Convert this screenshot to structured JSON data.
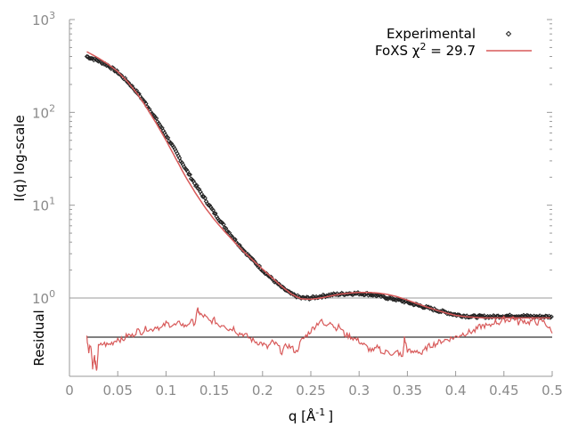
{
  "chart_data": [
    {
      "type": "scatter",
      "panel": "main",
      "ylabel": "I(q) log-scale",
      "xlim": [
        0,
        0.5
      ],
      "ylim_log10": [
        0,
        3
      ],
      "yscale": "log",
      "y_ticks": [
        {
          "base": "10",
          "exp": "0"
        },
        {
          "base": "10",
          "exp": "1"
        },
        {
          "base": "10",
          "exp": "2"
        },
        {
          "base": "10",
          "exp": "3"
        }
      ],
      "grid": false,
      "legend_position": "top-right",
      "series": [
        {
          "name": "Experimental",
          "style": "points",
          "color": "#222222",
          "x": [
            0.018,
            0.03,
            0.04,
            0.05,
            0.06,
            0.07,
            0.08,
            0.09,
            0.1,
            0.11,
            0.12,
            0.13,
            0.14,
            0.15,
            0.16,
            0.17,
            0.18,
            0.19,
            0.2,
            0.21,
            0.22,
            0.23,
            0.24,
            0.25,
            0.26,
            0.27,
            0.28,
            0.29,
            0.3,
            0.31,
            0.32,
            0.33,
            0.34,
            0.35,
            0.36,
            0.37,
            0.38,
            0.39,
            0.4,
            0.41,
            0.42,
            0.43,
            0.44,
            0.45,
            0.46,
            0.47,
            0.48,
            0.49,
            0.5
          ],
          "y": [
            400,
            360,
            320,
            270,
            215,
            165,
            120,
            84,
            57,
            38,
            25,
            17,
            11.8,
            8.3,
            6.0,
            4.4,
            3.3,
            2.55,
            2.0,
            1.6,
            1.3,
            1.1,
            1.0,
            1.0,
            1.04,
            1.08,
            1.1,
            1.12,
            1.12,
            1.1,
            1.06,
            1.0,
            0.96,
            0.9,
            0.84,
            0.79,
            0.74,
            0.7,
            0.66,
            0.64,
            0.63,
            0.63,
            0.63,
            0.64,
            0.64,
            0.64,
            0.63,
            0.63,
            0.63
          ]
        },
        {
          "name": "FoXS χ² = 29.7",
          "legend_text": "FoXS χ",
          "legend_sup": "2",
          "legend_suffix": " = 29.7",
          "style": "line",
          "color": "#d85a5a",
          "x": [
            0.018,
            0.03,
            0.04,
            0.05,
            0.06,
            0.07,
            0.08,
            0.09,
            0.1,
            0.11,
            0.12,
            0.13,
            0.14,
            0.15,
            0.16,
            0.17,
            0.18,
            0.19,
            0.2,
            0.21,
            0.22,
            0.23,
            0.24,
            0.25,
            0.26,
            0.27,
            0.28,
            0.29,
            0.3,
            0.31,
            0.32,
            0.33,
            0.34,
            0.35,
            0.36,
            0.37,
            0.38,
            0.39,
            0.4,
            0.41,
            0.42,
            0.43,
            0.44,
            0.45,
            0.46,
            0.47,
            0.48,
            0.49,
            0.5
          ],
          "y": [
            450,
            385,
            330,
            275,
            215,
            160,
            112,
            76,
            50,
            32,
            20.5,
            13.8,
            9.6,
            7.0,
            5.3,
            4.1,
            3.2,
            2.55,
            2.05,
            1.65,
            1.33,
            1.1,
            0.98,
            0.97,
            1.0,
            1.05,
            1.1,
            1.13,
            1.15,
            1.15,
            1.13,
            1.09,
            1.03,
            0.95,
            0.87,
            0.8,
            0.74,
            0.69,
            0.65,
            0.63,
            0.62,
            0.61,
            0.61,
            0.61,
            0.61,
            0.61,
            0.61,
            0.61,
            0.61
          ]
        }
      ]
    },
    {
      "type": "line",
      "panel": "residual",
      "ylabel": "Residual",
      "xlabel_base": "q [Å",
      "xlabel_sup": "-1",
      "xlabel_end": "]",
      "xlim": [
        0,
        0.5
      ],
      "ylim": [
        -6,
        6
      ],
      "x_ticks": [
        "0",
        "0.05",
        "0.1",
        "0.15",
        "0.2",
        "0.25",
        "0.3",
        "0.35",
        "0.4",
        "0.45",
        "0.5"
      ],
      "reference_line": 0,
      "series": [
        {
          "style": "line",
          "color": "#d85a5a",
          "x": [
            0.018,
            0.02,
            0.022,
            0.024,
            0.026,
            0.028,
            0.03,
            0.035,
            0.04,
            0.045,
            0.05,
            0.055,
            0.06,
            0.065,
            0.07,
            0.075,
            0.08,
            0.085,
            0.09,
            0.095,
            0.1,
            0.105,
            0.11,
            0.115,
            0.12,
            0.125,
            0.13,
            0.133,
            0.135,
            0.14,
            0.145,
            0.15,
            0.155,
            0.16,
            0.165,
            0.17,
            0.175,
            0.18,
            0.185,
            0.19,
            0.195,
            0.2,
            0.205,
            0.21,
            0.215,
            0.22,
            0.225,
            0.23,
            0.235,
            0.24,
            0.245,
            0.25,
            0.255,
            0.26,
            0.265,
            0.27,
            0.275,
            0.28,
            0.285,
            0.29,
            0.295,
            0.3,
            0.305,
            0.31,
            0.315,
            0.32,
            0.325,
            0.33,
            0.335,
            0.34,
            0.345,
            0.347,
            0.35,
            0.355,
            0.36,
            0.365,
            0.37,
            0.375,
            0.38,
            0.385,
            0.39,
            0.395,
            0.4,
            0.405,
            0.41,
            0.415,
            0.42,
            0.425,
            0.43,
            0.435,
            0.44,
            0.445,
            0.45,
            0.455,
            0.46,
            0.465,
            0.47,
            0.475,
            0.48,
            0.485,
            0.49,
            0.495,
            0.5
          ],
          "y": [
            0,
            -2,
            -1,
            -4.5,
            -3,
            -5.5,
            -1.5,
            -1,
            -1.2,
            -0.8,
            -0.2,
            -0.5,
            0.3,
            0.2,
            1,
            0.8,
            1.4,
            1.1,
            1.7,
            1.3,
            2.1,
            1.9,
            1.8,
            2.2,
            1.6,
            2.4,
            2.2,
            4.3,
            3.4,
            3.2,
            2.4,
            2.6,
            1.8,
            2,
            1.2,
            1.4,
            0.6,
            0.5,
            0,
            -0.5,
            -0.8,
            -1,
            -1.6,
            -0.8,
            -1.2,
            -2.3,
            -1.2,
            -1.6,
            -2.3,
            -0.6,
            0.2,
            1,
            1.8,
            2.6,
            1.6,
            2.6,
            1.4,
            1.6,
            0.4,
            0.2,
            -0.2,
            -0.6,
            -1.2,
            -1.8,
            -2.2,
            -1.4,
            -2.6,
            -2,
            -2.8,
            -2.2,
            -3.2,
            -0.2,
            -2,
            -2.4,
            -2,
            -2.6,
            -1.6,
            -1.2,
            -1,
            -0.6,
            -0.4,
            -0.2,
            0,
            0.4,
            0.6,
            0.8,
            1,
            1.6,
            1.8,
            1.6,
            2.4,
            2.2,
            2.8,
            2.6,
            3.1,
            2.2,
            2.6,
            2.2,
            2.6,
            2.2,
            2.5,
            1.8,
            0.6
          ]
        }
      ]
    }
  ]
}
